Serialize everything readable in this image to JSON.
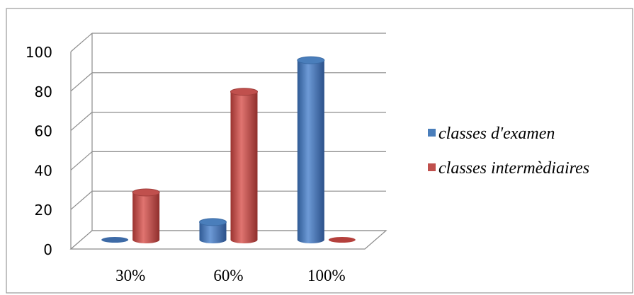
{
  "chart_data": {
    "type": "bar",
    "categories": [
      "30%",
      "60%",
      "100%"
    ],
    "series": [
      {
        "name": "classes d'examen",
        "values": [
          0,
          9,
          91
        ],
        "color": "#4a7ebb"
      },
      {
        "name": "classes intermèdiaires",
        "values": [
          24,
          75,
          0
        ],
        "color": "#c0504d"
      }
    ],
    "ylim": [
      0,
      100
    ],
    "yticks": [
      0,
      20,
      40,
      60,
      80,
      100
    ],
    "grid": true,
    "legend": "right",
    "style": "3d-cylinder"
  }
}
